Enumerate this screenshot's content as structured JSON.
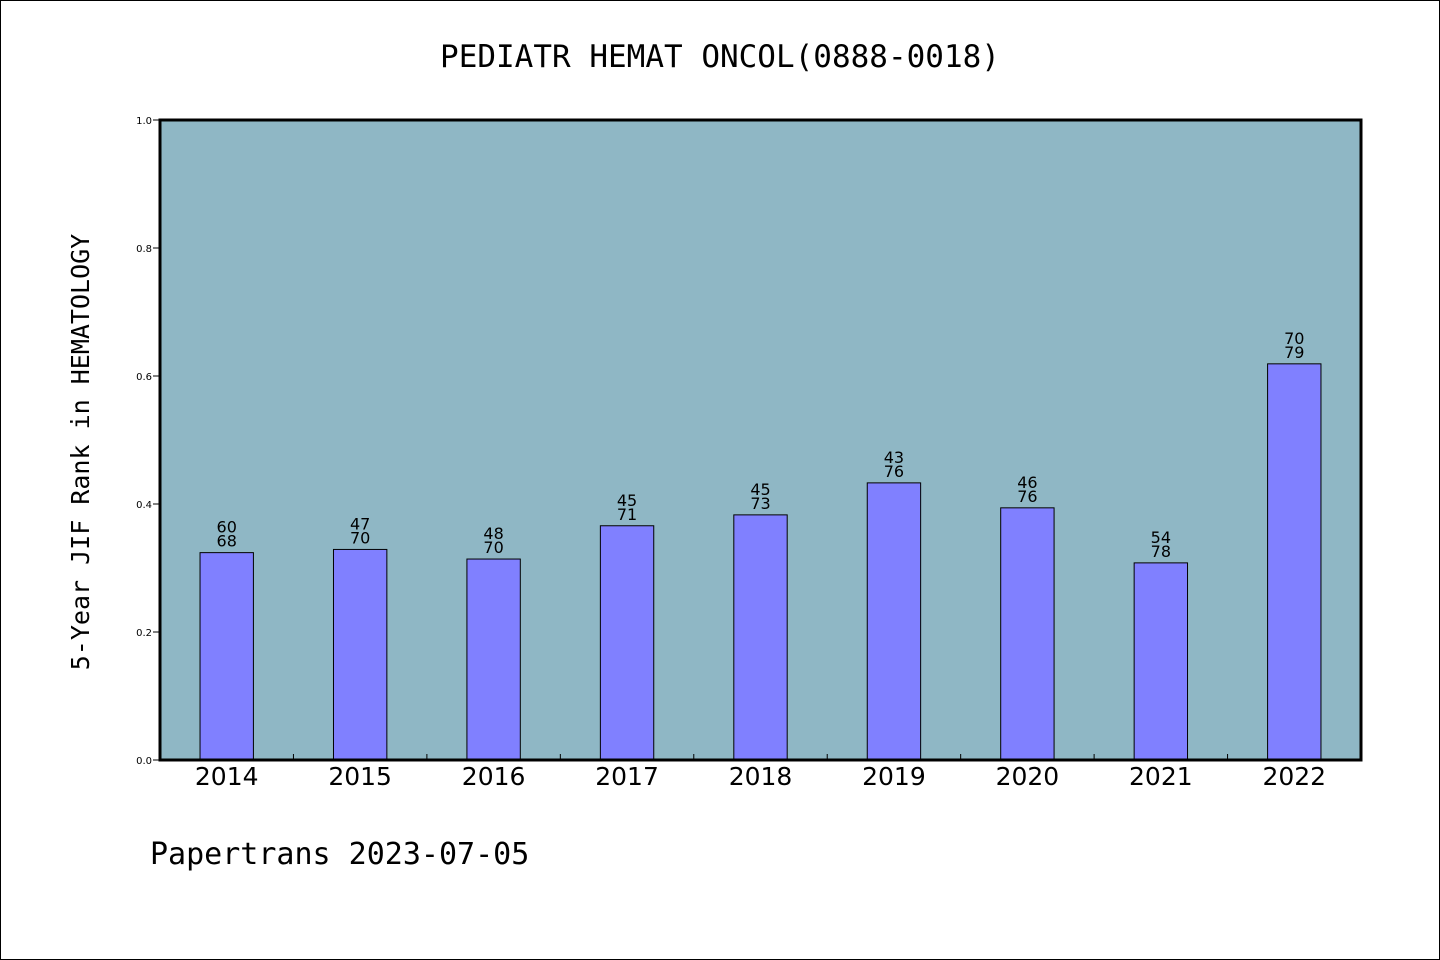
{
  "chart_data": {
    "type": "bar",
    "title": "PEDIATR HEMAT ONCOL(0888-0018)",
    "xlabel": "",
    "ylabel": "5-Year JIF Rank in HEMATOLOGY",
    "ylim": [
      0,
      1.0
    ],
    "yticks": [
      "0.0",
      "0.2",
      "0.4",
      "0.6",
      "0.8",
      "1.0"
    ],
    "categories": [
      "2014",
      "2015",
      "2016",
      "2017",
      "2018",
      "2019",
      "2020",
      "2021",
      "2022"
    ],
    "values": [
      0.324,
      0.329,
      0.314,
      0.366,
      0.383,
      0.433,
      0.394,
      0.308,
      0.619
    ],
    "labels_top": [
      "60",
      "47",
      "48",
      "45",
      "45",
      "43",
      "46",
      "54",
      "70"
    ],
    "labels_bottom": [
      "68",
      "70",
      "70",
      "71",
      "73",
      "76",
      "76",
      "78",
      "79"
    ],
    "grid": false,
    "legend": "none",
    "colors": {
      "plot_background": "#8fb7c5",
      "bar": "#8080ff"
    }
  },
  "footer": "Papertrans 2023-07-05"
}
